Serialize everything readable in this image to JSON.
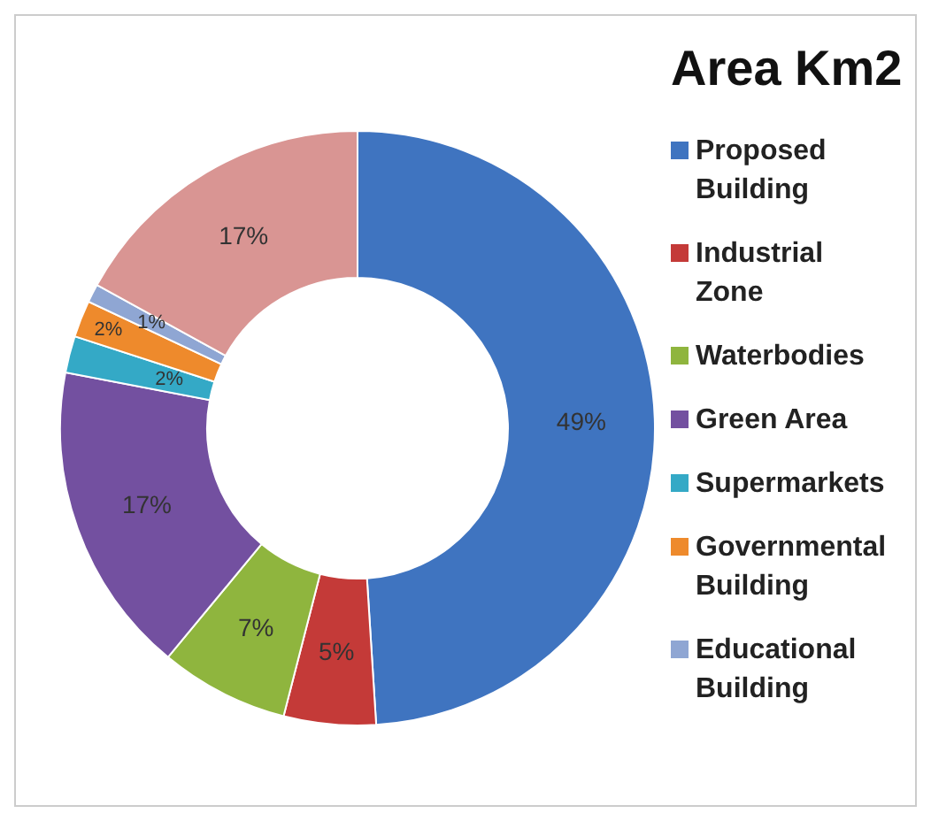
{
  "chart_data": {
    "type": "donut",
    "title": "Area Km2",
    "categories": [
      "Proposed Building",
      "Industrial Zone",
      "Waterbodies",
      "Green Area",
      "Supermarkets",
      "Governmental Building",
      "Educational Building",
      null
    ],
    "values": [
      49,
      5,
      7,
      17,
      2,
      2,
      1,
      17
    ],
    "colors": [
      "#3f74c0",
      "#c43a38",
      "#8fb53e",
      "#7350a0",
      "#34a9c6",
      "#ee8a2c",
      "#8fa6d3",
      "#d99593"
    ],
    "value_labels": [
      "49%",
      "5%",
      "7%",
      "17%",
      "2%",
      "2%",
      "1%",
      "17%"
    ],
    "legend": "right"
  }
}
